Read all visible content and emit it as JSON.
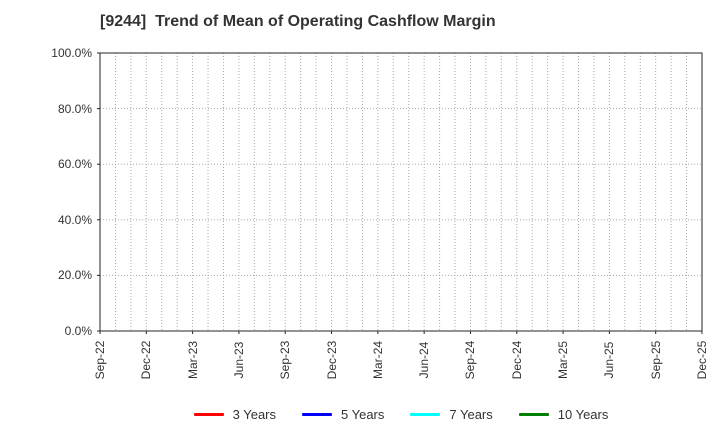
{
  "chart_data": {
    "type": "line",
    "title": "[9244]  Trend of Mean of Operating Cashflow Margin",
    "xlabel": "",
    "ylabel": "",
    "x_tick_labels": [
      "Sep-22",
      "Dec-22",
      "Mar-23",
      "Jun-23",
      "Sep-23",
      "Dec-23",
      "Mar-24",
      "Jun-24",
      "Sep-24",
      "Dec-24",
      "Mar-25",
      "Jun-25",
      "Sep-25",
      "Dec-25"
    ],
    "x_label_interval_months": 3,
    "y_tick_labels": [
      "0.0%",
      "20.0%",
      "40.0%",
      "60.0%",
      "80.0%",
      "100.0%"
    ],
    "y_tick_values": [
      0,
      20,
      40,
      60,
      80,
      100
    ],
    "ylim": [
      0,
      100
    ],
    "grid": true,
    "gridline_style": "dotted",
    "legend_position": "bottom",
    "series": [
      {
        "name": "3 Years",
        "color": "#ff0000",
        "values": []
      },
      {
        "name": "5 Years",
        "color": "#0000ff",
        "values": []
      },
      {
        "name": "7 Years",
        "color": "#00ffff",
        "values": []
      },
      {
        "name": "10 Years",
        "color": "#008000",
        "values": []
      }
    ],
    "colors": {
      "axis": "#262626",
      "grid": "#aaaaaa",
      "text": "#333333",
      "background": "#ffffff"
    }
  }
}
